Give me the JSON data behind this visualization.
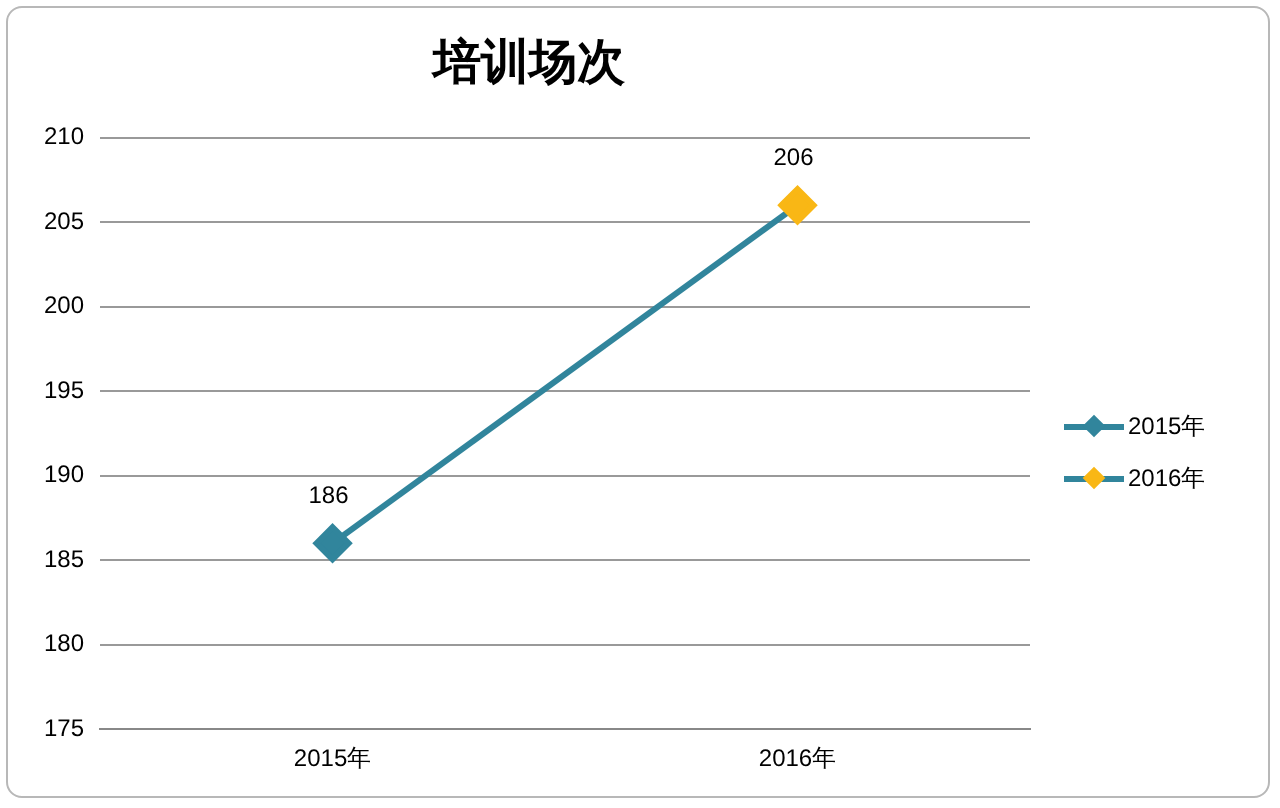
{
  "chart_data": {
    "type": "line",
    "title": "培训场次",
    "categories": [
      "2015年",
      "2016年"
    ],
    "series": [
      {
        "color": "#31859c",
        "colors": [
          "#31859c",
          "#f9b715"
        ],
        "values": [
          186,
          206
        ]
      }
    ],
    "ylim": [
      175,
      210
    ],
    "yticks": [
      175,
      180,
      185,
      190,
      195,
      200,
      205,
      210
    ],
    "grid": "y",
    "marker": "diamond",
    "data_labels": true
  }
}
